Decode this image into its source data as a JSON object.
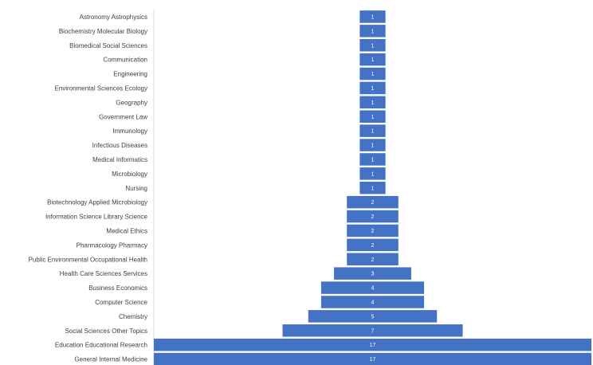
{
  "chart_data": {
    "type": "bar",
    "orientation": "horizontal",
    "layout": "centered funnel",
    "categories": [
      "Astronomy Astrophysics",
      "Biochemistry Molecular Biology",
      "Biomedical Social Sciences",
      "Communication",
      "Engineering",
      "Environmental Sciences Ecology",
      "Geography",
      "Government Law",
      "Immunology",
      "Infectious Diseases",
      "Medical Informatics",
      "Microbiology",
      "Nursing",
      "Biotechnology Applied Microbiology",
      "Information Science Library Science",
      "Medical Ethics",
      "Pharmacology Pharmacy",
      "Public Environmental Occupational Health",
      "Health Care Sciences Services",
      "Business Economics",
      "Computer Science",
      "Chemistry",
      "Social Sciences Other Topics",
      "Education Educational Research",
      "General Internal Medicine"
    ],
    "values": [
      1,
      1,
      1,
      1,
      1,
      1,
      1,
      1,
      1,
      1,
      1,
      1,
      1,
      2,
      2,
      2,
      2,
      2,
      3,
      4,
      4,
      5,
      7,
      17,
      17
    ],
    "xlim": [
      0,
      17
    ],
    "data_labels": true,
    "grid": false,
    "legend": "none",
    "colors": {
      "bar": "#4472c4",
      "bar_text": "#ffffff",
      "category_text": "#404040",
      "axis_line": "#d9d9d9"
    }
  }
}
